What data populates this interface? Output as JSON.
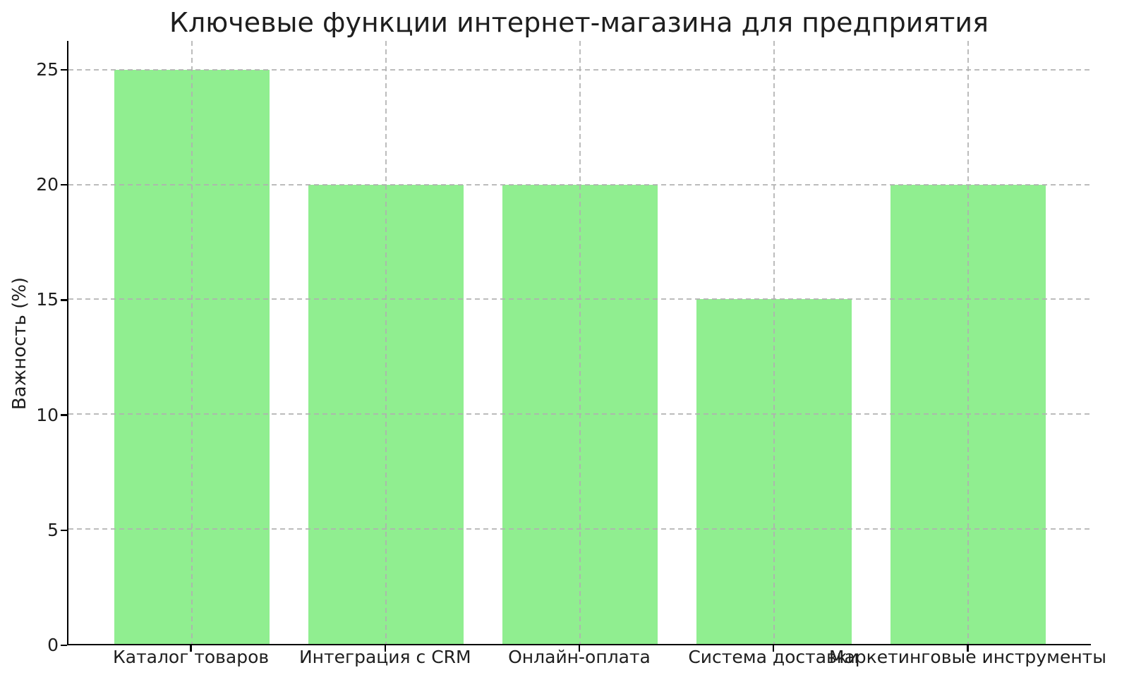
{
  "chart_data": {
    "type": "bar",
    "title": "Ключевые функции интернет-магазина для предприятия",
    "categories": [
      "Каталог товаров",
      "Интеграция с CRM",
      "Онлайн-оплата",
      "Система доставки",
      "Маркетинговые инструменты"
    ],
    "values": [
      25,
      20,
      20,
      15,
      20
    ],
    "xlabel": "",
    "ylabel": "Важность (%)",
    "ylim": [
      0,
      26.25
    ],
    "yticks": [
      0,
      5,
      10,
      15,
      20,
      25
    ],
    "bar_color": "#90EE90",
    "grid": "on",
    "grid_linestyle": "dashed",
    "grid_color": "#b0b0b0",
    "legend_position": "none",
    "spine_color": "#000000",
    "text_color": "#1e1e1e",
    "background_color": "#ffffff"
  }
}
